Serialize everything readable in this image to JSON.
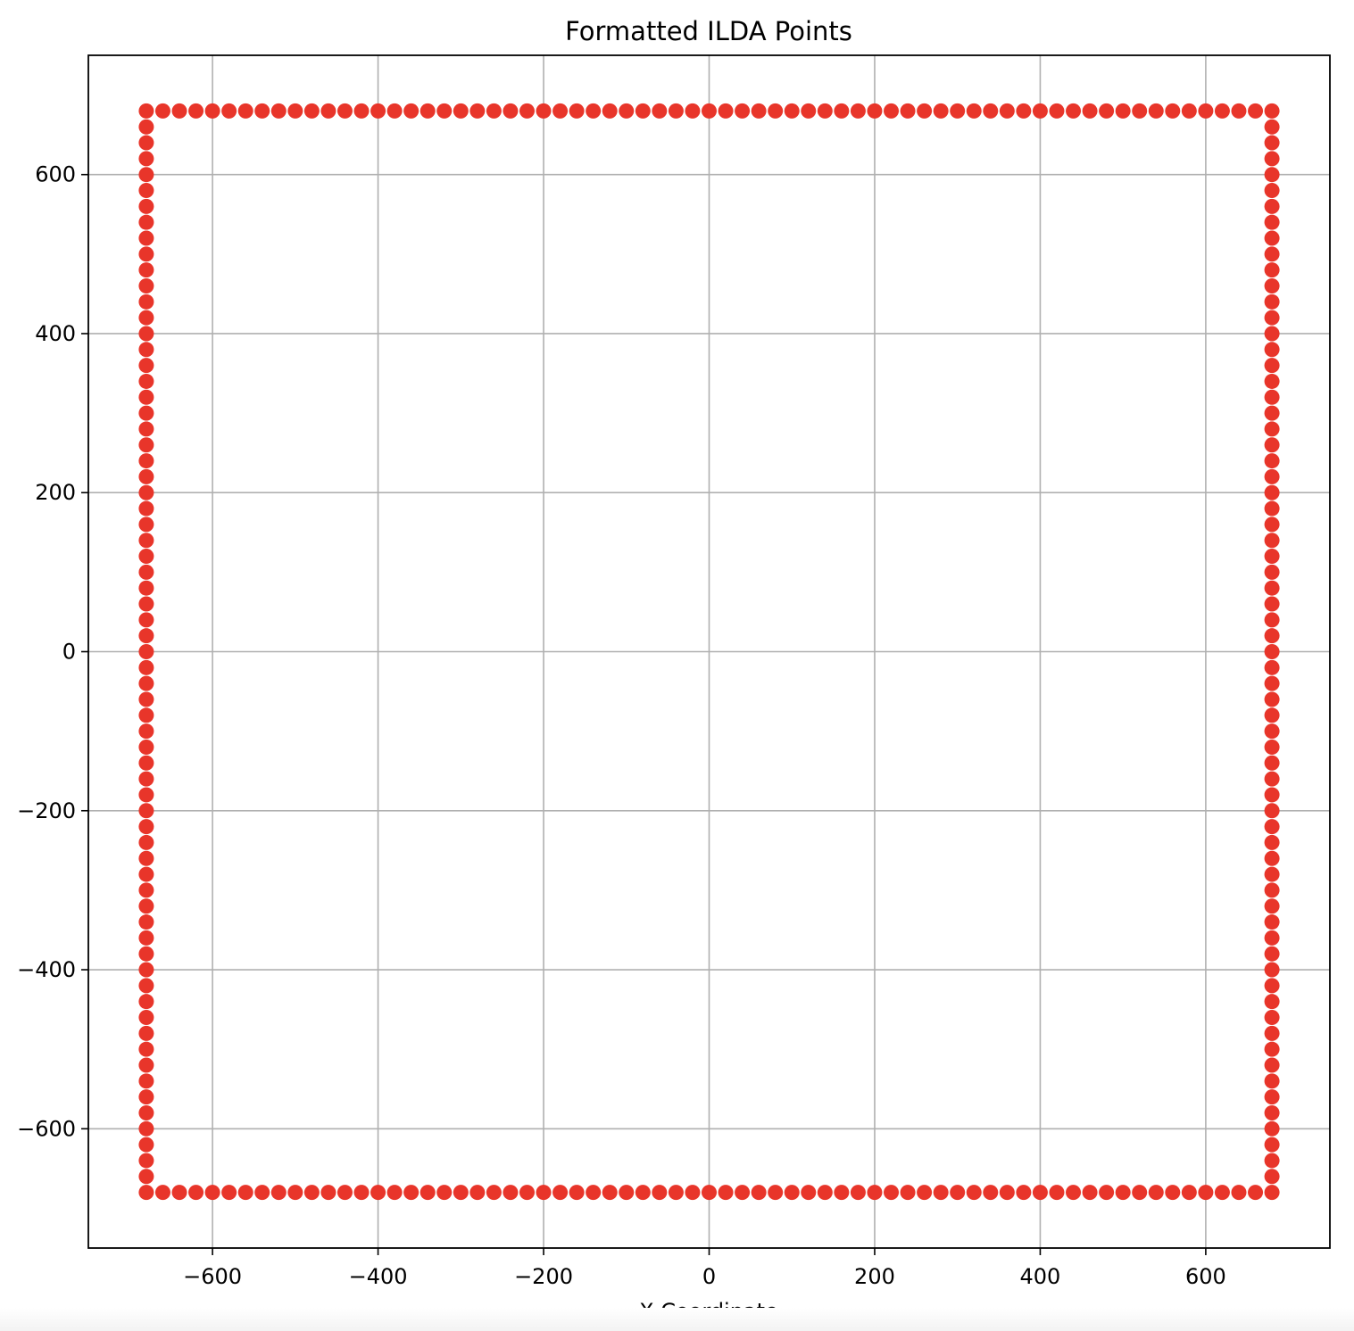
{
  "chart_data": {
    "type": "scatter",
    "title": "Formatted ILDA Points",
    "xlabel": "X Coordinate",
    "ylabel": "",
    "xlim": [
      -750,
      750
    ],
    "ylim": [
      -750,
      750
    ],
    "x_ticks": [
      -600,
      -400,
      -200,
      0,
      200,
      400,
      600
    ],
    "y_ticks": [
      -600,
      -400,
      -200,
      0,
      200,
      400,
      600
    ],
    "x_tick_labels": [
      "−600",
      "−400",
      "−200",
      "0",
      "200",
      "400",
      "600"
    ],
    "y_tick_labels": [
      "−600",
      "−400",
      "−200",
      "0",
      "200",
      "400",
      "600"
    ],
    "grid": true,
    "marker_color": "#e8352a",
    "series": [
      {
        "points": [
          [
            -680,
            680
          ],
          [
            -660,
            680
          ],
          [
            -640,
            680
          ],
          [
            -620,
            680
          ],
          [
            -600,
            680
          ],
          [
            -580,
            680
          ],
          [
            -560,
            680
          ],
          [
            -540,
            680
          ],
          [
            -520,
            680
          ],
          [
            -500,
            680
          ],
          [
            -480,
            680
          ],
          [
            -460,
            680
          ],
          [
            -440,
            680
          ],
          [
            -420,
            680
          ],
          [
            -400,
            680
          ],
          [
            -380,
            680
          ],
          [
            -360,
            680
          ],
          [
            -340,
            680
          ],
          [
            -320,
            680
          ],
          [
            -300,
            680
          ],
          [
            -280,
            680
          ],
          [
            -260,
            680
          ],
          [
            -240,
            680
          ],
          [
            -220,
            680
          ],
          [
            -200,
            680
          ],
          [
            -180,
            680
          ],
          [
            -160,
            680
          ],
          [
            -140,
            680
          ],
          [
            -120,
            680
          ],
          [
            -100,
            680
          ],
          [
            -80,
            680
          ],
          [
            -60,
            680
          ],
          [
            -40,
            680
          ],
          [
            -20,
            680
          ],
          [
            0,
            680
          ],
          [
            20,
            680
          ],
          [
            40,
            680
          ],
          [
            60,
            680
          ],
          [
            80,
            680
          ],
          [
            100,
            680
          ],
          [
            120,
            680
          ],
          [
            140,
            680
          ],
          [
            160,
            680
          ],
          [
            180,
            680
          ],
          [
            200,
            680
          ],
          [
            220,
            680
          ],
          [
            240,
            680
          ],
          [
            260,
            680
          ],
          [
            280,
            680
          ],
          [
            300,
            680
          ],
          [
            320,
            680
          ],
          [
            340,
            680
          ],
          [
            360,
            680
          ],
          [
            380,
            680
          ],
          [
            400,
            680
          ],
          [
            420,
            680
          ],
          [
            440,
            680
          ],
          [
            460,
            680
          ],
          [
            480,
            680
          ],
          [
            500,
            680
          ],
          [
            520,
            680
          ],
          [
            540,
            680
          ],
          [
            560,
            680
          ],
          [
            580,
            680
          ],
          [
            600,
            680
          ],
          [
            620,
            680
          ],
          [
            640,
            680
          ],
          [
            660,
            680
          ],
          [
            680,
            680
          ],
          [
            680,
            660
          ],
          [
            680,
            640
          ],
          [
            680,
            620
          ],
          [
            680,
            600
          ],
          [
            680,
            580
          ],
          [
            680,
            560
          ],
          [
            680,
            540
          ],
          [
            680,
            520
          ],
          [
            680,
            500
          ],
          [
            680,
            480
          ],
          [
            680,
            460
          ],
          [
            680,
            440
          ],
          [
            680,
            420
          ],
          [
            680,
            400
          ],
          [
            680,
            380
          ],
          [
            680,
            360
          ],
          [
            680,
            340
          ],
          [
            680,
            320
          ],
          [
            680,
            300
          ],
          [
            680,
            280
          ],
          [
            680,
            260
          ],
          [
            680,
            240
          ],
          [
            680,
            220
          ],
          [
            680,
            200
          ],
          [
            680,
            180
          ],
          [
            680,
            160
          ],
          [
            680,
            140
          ],
          [
            680,
            120
          ],
          [
            680,
            100
          ],
          [
            680,
            80
          ],
          [
            680,
            60
          ],
          [
            680,
            40
          ],
          [
            680,
            20
          ],
          [
            680,
            0
          ],
          [
            680,
            -20
          ],
          [
            680,
            -40
          ],
          [
            680,
            -60
          ],
          [
            680,
            -80
          ],
          [
            680,
            -100
          ],
          [
            680,
            -120
          ],
          [
            680,
            -140
          ],
          [
            680,
            -160
          ],
          [
            680,
            -180
          ],
          [
            680,
            -200
          ],
          [
            680,
            -220
          ],
          [
            680,
            -240
          ],
          [
            680,
            -260
          ],
          [
            680,
            -280
          ],
          [
            680,
            -300
          ],
          [
            680,
            -320
          ],
          [
            680,
            -340
          ],
          [
            680,
            -360
          ],
          [
            680,
            -380
          ],
          [
            680,
            -400
          ],
          [
            680,
            -420
          ],
          [
            680,
            -440
          ],
          [
            680,
            -460
          ],
          [
            680,
            -480
          ],
          [
            680,
            -500
          ],
          [
            680,
            -520
          ],
          [
            680,
            -540
          ],
          [
            680,
            -560
          ],
          [
            680,
            -580
          ],
          [
            680,
            -600
          ],
          [
            680,
            -620
          ],
          [
            680,
            -640
          ],
          [
            680,
            -660
          ],
          [
            680,
            -680
          ],
          [
            660,
            -680
          ],
          [
            640,
            -680
          ],
          [
            620,
            -680
          ],
          [
            600,
            -680
          ],
          [
            580,
            -680
          ],
          [
            560,
            -680
          ],
          [
            540,
            -680
          ],
          [
            520,
            -680
          ],
          [
            500,
            -680
          ],
          [
            480,
            -680
          ],
          [
            460,
            -680
          ],
          [
            440,
            -680
          ],
          [
            420,
            -680
          ],
          [
            400,
            -680
          ],
          [
            380,
            -680
          ],
          [
            360,
            -680
          ],
          [
            340,
            -680
          ],
          [
            320,
            -680
          ],
          [
            300,
            -680
          ],
          [
            280,
            -680
          ],
          [
            260,
            -680
          ],
          [
            240,
            -680
          ],
          [
            220,
            -680
          ],
          [
            200,
            -680
          ],
          [
            180,
            -680
          ],
          [
            160,
            -680
          ],
          [
            140,
            -680
          ],
          [
            120,
            -680
          ],
          [
            100,
            -680
          ],
          [
            80,
            -680
          ],
          [
            60,
            -680
          ],
          [
            40,
            -680
          ],
          [
            20,
            -680
          ],
          [
            0,
            -680
          ],
          [
            -20,
            -680
          ],
          [
            -40,
            -680
          ],
          [
            -60,
            -680
          ],
          [
            -80,
            -680
          ],
          [
            -100,
            -680
          ],
          [
            -120,
            -680
          ],
          [
            -140,
            -680
          ],
          [
            -160,
            -680
          ],
          [
            -180,
            -680
          ],
          [
            -200,
            -680
          ],
          [
            -220,
            -680
          ],
          [
            -240,
            -680
          ],
          [
            -260,
            -680
          ],
          [
            -280,
            -680
          ],
          [
            -300,
            -680
          ],
          [
            -320,
            -680
          ],
          [
            -340,
            -680
          ],
          [
            -360,
            -680
          ],
          [
            -380,
            -680
          ],
          [
            -400,
            -680
          ],
          [
            -420,
            -680
          ],
          [
            -440,
            -680
          ],
          [
            -460,
            -680
          ],
          [
            -480,
            -680
          ],
          [
            -500,
            -680
          ],
          [
            -520,
            -680
          ],
          [
            -540,
            -680
          ],
          [
            -560,
            -680
          ],
          [
            -580,
            -680
          ],
          [
            -600,
            -680
          ],
          [
            -620,
            -680
          ],
          [
            -640,
            -680
          ],
          [
            -660,
            -680
          ],
          [
            -680,
            -680
          ],
          [
            -680,
            -660
          ],
          [
            -680,
            -640
          ],
          [
            -680,
            -620
          ],
          [
            -680,
            -600
          ],
          [
            -680,
            -580
          ],
          [
            -680,
            -560
          ],
          [
            -680,
            -540
          ],
          [
            -680,
            -520
          ],
          [
            -680,
            -500
          ],
          [
            -680,
            -480
          ],
          [
            -680,
            -460
          ],
          [
            -680,
            -440
          ],
          [
            -680,
            -420
          ],
          [
            -680,
            -400
          ],
          [
            -680,
            -380
          ],
          [
            -680,
            -360
          ],
          [
            -680,
            -340
          ],
          [
            -680,
            -320
          ],
          [
            -680,
            -300
          ],
          [
            -680,
            -280
          ],
          [
            -680,
            -260
          ],
          [
            -680,
            -240
          ],
          [
            -680,
            -220
          ],
          [
            -680,
            -200
          ],
          [
            -680,
            -180
          ],
          [
            -680,
            -160
          ],
          [
            -680,
            -140
          ],
          [
            -680,
            -120
          ],
          [
            -680,
            -100
          ],
          [
            -680,
            -80
          ],
          [
            -680,
            -60
          ],
          [
            -680,
            -40
          ],
          [
            -680,
            -20
          ],
          [
            -680,
            0
          ],
          [
            -680,
            20
          ],
          [
            -680,
            40
          ],
          [
            -680,
            60
          ],
          [
            -680,
            80
          ],
          [
            -680,
            100
          ],
          [
            -680,
            120
          ],
          [
            -680,
            140
          ],
          [
            -680,
            160
          ],
          [
            -680,
            180
          ],
          [
            -680,
            200
          ],
          [
            -680,
            220
          ],
          [
            -680,
            240
          ],
          [
            -680,
            260
          ],
          [
            -680,
            280
          ],
          [
            -680,
            300
          ],
          [
            -680,
            320
          ],
          [
            -680,
            340
          ],
          [
            -680,
            360
          ],
          [
            -680,
            380
          ],
          [
            -680,
            400
          ],
          [
            -680,
            420
          ],
          [
            -680,
            440
          ],
          [
            -680,
            460
          ],
          [
            -680,
            480
          ],
          [
            -680,
            500
          ],
          [
            -680,
            520
          ],
          [
            -680,
            540
          ],
          [
            -680,
            560
          ],
          [
            -680,
            580
          ],
          [
            -680,
            600
          ],
          [
            -680,
            620
          ],
          [
            -680,
            640
          ],
          [
            -680,
            660
          ]
        ]
      }
    ]
  }
}
